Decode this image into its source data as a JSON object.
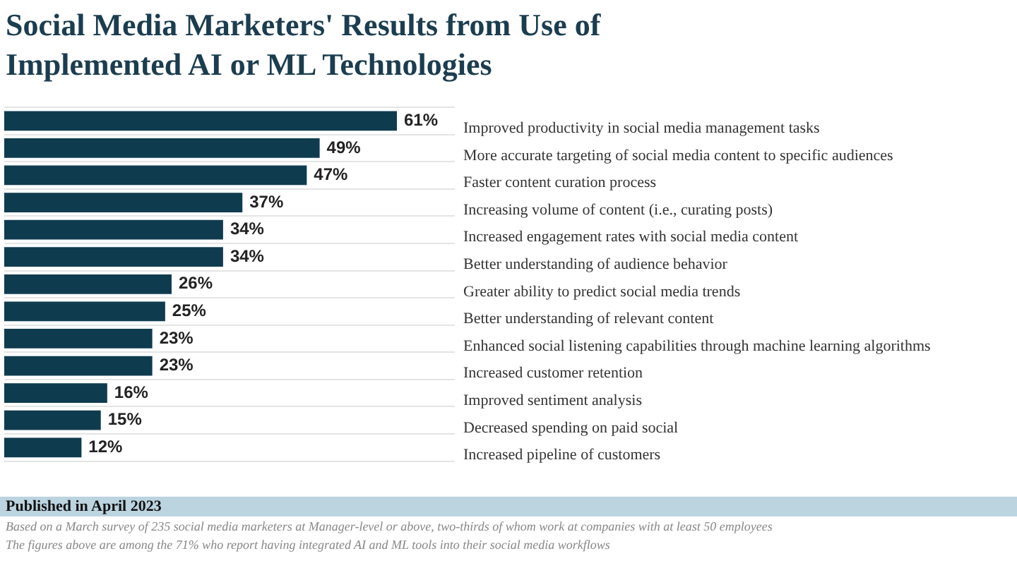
{
  "chart_data": {
    "type": "bar",
    "orientation": "horizontal",
    "title": "Social Media Marketers' Results from Use of Implemented AI or ML Technologies",
    "categories": [
      "Improved productivity in social media management tasks",
      "More accurate targeting of social media content to specific audiences",
      "Faster content curation process",
      "Increasing volume of content (i.e., curating posts)",
      "Increased engagement rates with social media content",
      "Better understanding of audience behavior",
      "Greater ability to predict social media trends",
      "Better understanding of relevant content",
      "Enhanced social listening capabilities through machine learning algorithms",
      "Increased customer retention",
      "Improved sentiment analysis",
      "Decreased spending on paid social",
      "Increased pipeline of customers"
    ],
    "values": [
      61,
      49,
      47,
      37,
      34,
      34,
      26,
      25,
      23,
      23,
      16,
      15,
      12
    ],
    "value_labels": [
      "61%",
      "49%",
      "47%",
      "37%",
      "34%",
      "34%",
      "26%",
      "25%",
      "23%",
      "23%",
      "16%",
      "15%",
      "12%"
    ],
    "color": "#0f3b4f",
    "tick_labels": "y",
    "grid": "y",
    "legend": false,
    "annotations": [
      "Published in April 2023",
      "Based on a March survey of 235 social media marketers at Manager-level or above, two-thirds of whom work at companies with at least 50 employees",
      "The figures above are among the 71% who report having integrated AI and ML tools into their social media workflows"
    ]
  }
}
